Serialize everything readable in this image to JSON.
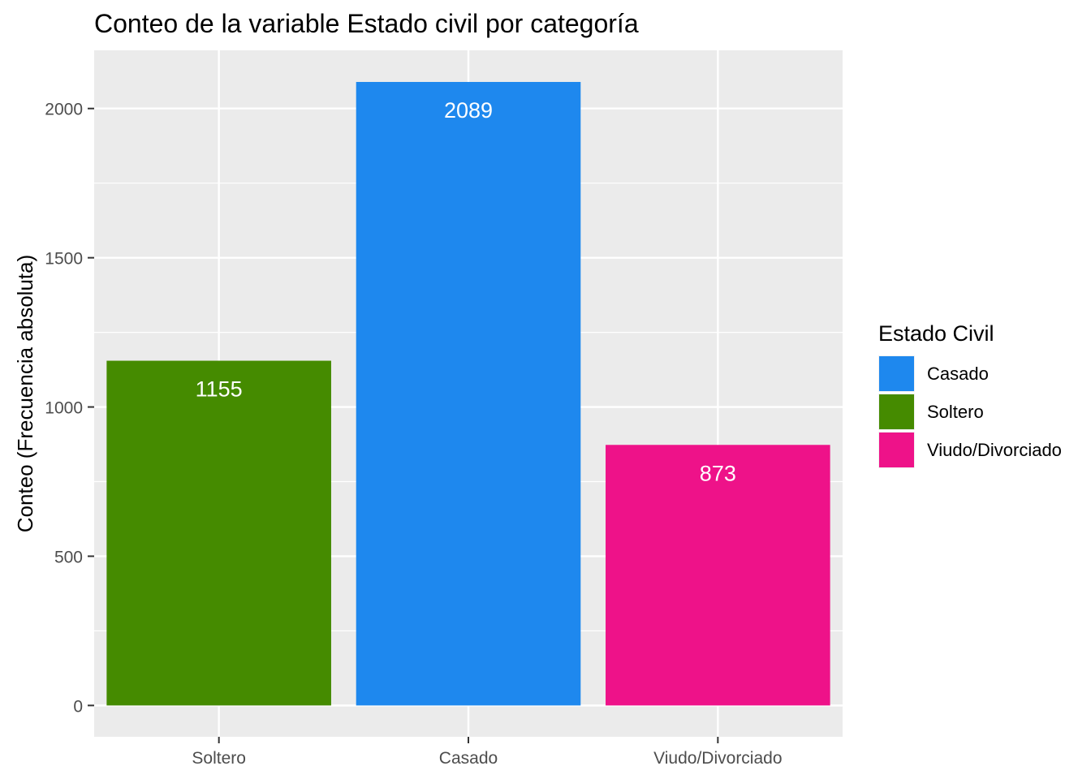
{
  "chart_data": {
    "type": "bar",
    "title": "Conteo de la variable Estado civil por categoría",
    "xlabel": "",
    "ylabel": "Conteo (Frecuencia absoluta)",
    "categories": [
      "Soltero",
      "Casado",
      "Viudo/Divorciado"
    ],
    "values": [
      1155,
      2089,
      873
    ],
    "data_labels": [
      "1155",
      "2089",
      "873"
    ],
    "colors": [
      "#458B00",
      "#1E88EE",
      "#EE1289"
    ],
    "ylim": [
      -105,
      2195
    ],
    "yticks": [
      0,
      500,
      1000,
      1500,
      2000
    ],
    "ytick_labels": [
      "0",
      "500",
      "1000",
      "1500",
      "2000"
    ],
    "grid": true,
    "panel_background": "#EBEBEB",
    "legend": {
      "title": "Estado Civil",
      "position": "right",
      "items": [
        {
          "label": "Casado",
          "color": "#1E88EE"
        },
        {
          "label": "Soltero",
          "color": "#458B00"
        },
        {
          "label": "Viudo/Divorciado",
          "color": "#EE1289"
        }
      ]
    }
  }
}
